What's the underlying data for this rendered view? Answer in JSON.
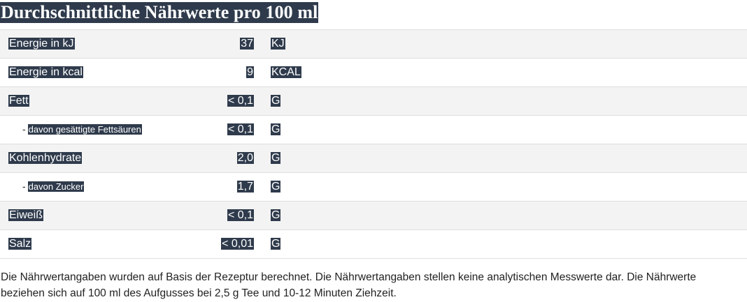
{
  "title": "Durchschnittliche Nährwerte pro 100 ml",
  "rows": [
    {
      "dash": "",
      "label": "Energie in kJ",
      "value": "37",
      "unit": "KJ"
    },
    {
      "dash": "",
      "label": "Energie in kcal",
      "value": "9",
      "unit": "KCAL"
    },
    {
      "dash": "",
      "label": "Fett",
      "value": "< 0,1",
      "unit": "G"
    },
    {
      "dash": "-",
      "label": "davon gesättigte Fettsäuren",
      "value": "< 0,1",
      "unit": "G"
    },
    {
      "dash": "",
      "label": "Kohlenhydrate",
      "value": "2,0",
      "unit": "G"
    },
    {
      "dash": "-",
      "label": "davon Zucker",
      "value": "1,7",
      "unit": "G"
    },
    {
      "dash": "",
      "label": "Eiweiß",
      "value": "< 0,1",
      "unit": "G"
    },
    {
      "dash": "",
      "label": "Salz",
      "value": "< 0,01",
      "unit": "G"
    }
  ],
  "note": "Die Nährwertangaben wurden auf Basis der Rezeptur berechnet. Die Nährwertangaben stellen keine analytischen Messwerte dar. Die Nährwerte beziehen sich auf 100 ml des Aufgusses bei 2,5 g Tee und 10-12 Minuten Ziehzeit."
}
